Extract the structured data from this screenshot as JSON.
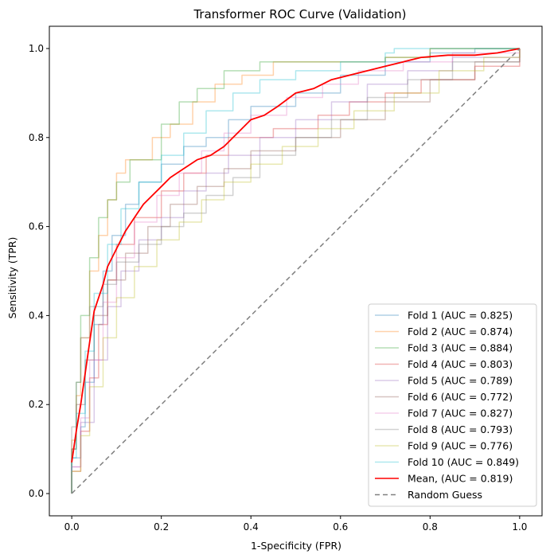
{
  "chart_data": {
    "type": "line",
    "title": "Transformer ROC Curve (Validation)",
    "xlabel": "1-Specificity (FPR)",
    "ylabel": "Sensitivity (TPR)",
    "xlim": [
      -0.05,
      1.05
    ],
    "ylim": [
      -0.05,
      1.05
    ],
    "xticks": [
      0.0,
      0.2,
      0.4,
      0.6,
      0.8,
      1.0
    ],
    "yticks": [
      0.0,
      0.2,
      0.4,
      0.6,
      0.8,
      1.0
    ],
    "xtick_labels": [
      "0.0",
      "0.2",
      "0.4",
      "0.6",
      "0.8",
      "1.0"
    ],
    "ytick_labels": [
      "0.0",
      "0.2",
      "0.4",
      "0.6",
      "0.8",
      "1.0"
    ],
    "grid": false,
    "legend_position": "bottom-right",
    "series": [
      {
        "name": "Fold 1 (AUC = 0.825)",
        "color": "#1f77b4",
        "opacity": 0.35,
        "points": [
          [
            0,
            0
          ],
          [
            0,
            0.08
          ],
          [
            0.02,
            0.15
          ],
          [
            0.03,
            0.25
          ],
          [
            0.05,
            0.38
          ],
          [
            0.07,
            0.5
          ],
          [
            0.09,
            0.58
          ],
          [
            0.12,
            0.65
          ],
          [
            0.15,
            0.7
          ],
          [
            0.2,
            0.74
          ],
          [
            0.25,
            0.78
          ],
          [
            0.3,
            0.8
          ],
          [
            0.35,
            0.84
          ],
          [
            0.4,
            0.87
          ],
          [
            0.5,
            0.9
          ],
          [
            0.6,
            0.94
          ],
          [
            0.7,
            0.97
          ],
          [
            0.8,
            0.99
          ],
          [
            0.9,
            1.0
          ],
          [
            1,
            1
          ]
        ]
      },
      {
        "name": "Fold 2 (AUC = 0.874)",
        "color": "#ff7f0e",
        "opacity": 0.35,
        "points": [
          [
            0,
            0
          ],
          [
            0,
            0.12
          ],
          [
            0.01,
            0.22
          ],
          [
            0.02,
            0.35
          ],
          [
            0.04,
            0.5
          ],
          [
            0.06,
            0.58
          ],
          [
            0.08,
            0.66
          ],
          [
            0.1,
            0.72
          ],
          [
            0.12,
            0.75
          ],
          [
            0.18,
            0.8
          ],
          [
            0.22,
            0.83
          ],
          [
            0.27,
            0.88
          ],
          [
            0.32,
            0.92
          ],
          [
            0.38,
            0.94
          ],
          [
            0.45,
            0.97
          ],
          [
            0.6,
            0.97
          ],
          [
            0.7,
            0.98
          ],
          [
            0.8,
            1.0
          ],
          [
            1,
            1
          ]
        ]
      },
      {
        "name": "Fold 3 (AUC = 0.884)",
        "color": "#2ca02c",
        "opacity": 0.35,
        "points": [
          [
            0,
            0
          ],
          [
            0,
            0.1
          ],
          [
            0.01,
            0.25
          ],
          [
            0.02,
            0.4
          ],
          [
            0.04,
            0.53
          ],
          [
            0.06,
            0.62
          ],
          [
            0.08,
            0.66
          ],
          [
            0.1,
            0.7
          ],
          [
            0.13,
            0.75
          ],
          [
            0.2,
            0.83
          ],
          [
            0.24,
            0.88
          ],
          [
            0.28,
            0.91
          ],
          [
            0.34,
            0.95
          ],
          [
            0.42,
            0.97
          ],
          [
            0.55,
            0.97
          ],
          [
            0.7,
            0.98
          ],
          [
            0.8,
            1.0
          ],
          [
            1,
            1
          ]
        ]
      },
      {
        "name": "Fold 4 (AUC = 0.803)",
        "color": "#d62728",
        "opacity": 0.35,
        "points": [
          [
            0,
            0
          ],
          [
            0,
            0.05
          ],
          [
            0.02,
            0.14
          ],
          [
            0.04,
            0.26
          ],
          [
            0.06,
            0.38
          ],
          [
            0.08,
            0.48
          ],
          [
            0.1,
            0.56
          ],
          [
            0.14,
            0.62
          ],
          [
            0.2,
            0.68
          ],
          [
            0.25,
            0.72
          ],
          [
            0.3,
            0.76
          ],
          [
            0.35,
            0.8
          ],
          [
            0.45,
            0.82
          ],
          [
            0.55,
            0.85
          ],
          [
            0.62,
            0.88
          ],
          [
            0.7,
            0.9
          ],
          [
            0.78,
            0.93
          ],
          [
            0.9,
            0.96
          ],
          [
            1,
            1
          ]
        ]
      },
      {
        "name": "Fold 5 (AUC = 0.789)",
        "color": "#9467bd",
        "opacity": 0.35,
        "points": [
          [
            0,
            0
          ],
          [
            0,
            0.06
          ],
          [
            0.02,
            0.16
          ],
          [
            0.05,
            0.3
          ],
          [
            0.08,
            0.42
          ],
          [
            0.11,
            0.5
          ],
          [
            0.15,
            0.57
          ],
          [
            0.2,
            0.62
          ],
          [
            0.25,
            0.68
          ],
          [
            0.3,
            0.72
          ],
          [
            0.35,
            0.76
          ],
          [
            0.42,
            0.8
          ],
          [
            0.5,
            0.84
          ],
          [
            0.58,
            0.88
          ],
          [
            0.66,
            0.92
          ],
          [
            0.75,
            0.95
          ],
          [
            0.85,
            0.98
          ],
          [
            1,
            1
          ]
        ]
      },
      {
        "name": "Fold 6 (AUC = 0.772)",
        "color": "#8c564b",
        "opacity": 0.35,
        "points": [
          [
            0,
            0
          ],
          [
            0,
            0.1
          ],
          [
            0.01,
            0.2
          ],
          [
            0.03,
            0.3
          ],
          [
            0.05,
            0.4
          ],
          [
            0.08,
            0.48
          ],
          [
            0.12,
            0.54
          ],
          [
            0.17,
            0.6
          ],
          [
            0.22,
            0.65
          ],
          [
            0.28,
            0.69
          ],
          [
            0.34,
            0.73
          ],
          [
            0.4,
            0.77
          ],
          [
            0.5,
            0.8
          ],
          [
            0.6,
            0.84
          ],
          [
            0.7,
            0.88
          ],
          [
            0.8,
            0.93
          ],
          [
            0.9,
            0.97
          ],
          [
            1,
            1
          ]
        ]
      },
      {
        "name": "Fold 7 (AUC = 0.827)",
        "color": "#e377c2",
        "opacity": 0.35,
        "points": [
          [
            0,
            0
          ],
          [
            0,
            0.06
          ],
          [
            0.02,
            0.17
          ],
          [
            0.04,
            0.3
          ],
          [
            0.07,
            0.43
          ],
          [
            0.1,
            0.53
          ],
          [
            0.14,
            0.61
          ],
          [
            0.19,
            0.67
          ],
          [
            0.24,
            0.72
          ],
          [
            0.29,
            0.77
          ],
          [
            0.34,
            0.81
          ],
          [
            0.4,
            0.85
          ],
          [
            0.48,
            0.89
          ],
          [
            0.56,
            0.92
          ],
          [
            0.64,
            0.95
          ],
          [
            0.74,
            0.97
          ],
          [
            0.85,
            0.99
          ],
          [
            1,
            1
          ]
        ]
      },
      {
        "name": "Fold 8 (AUC = 0.793)",
        "color": "#7f7f7f",
        "opacity": 0.35,
        "points": [
          [
            0,
            0
          ],
          [
            0,
            0.15
          ],
          [
            0.01,
            0.25
          ],
          [
            0.02,
            0.35
          ],
          [
            0.04,
            0.42
          ],
          [
            0.07,
            0.47
          ],
          [
            0.1,
            0.52
          ],
          [
            0.15,
            0.56
          ],
          [
            0.2,
            0.6
          ],
          [
            0.25,
            0.63
          ],
          [
            0.3,
            0.67
          ],
          [
            0.36,
            0.71
          ],
          [
            0.42,
            0.76
          ],
          [
            0.5,
            0.8
          ],
          [
            0.58,
            0.84
          ],
          [
            0.66,
            0.89
          ],
          [
            0.75,
            0.93
          ],
          [
            0.85,
            0.97
          ],
          [
            1,
            1
          ]
        ]
      },
      {
        "name": "Fold 9 (AUC = 0.776)",
        "color": "#bcbd22",
        "opacity": 0.35,
        "points": [
          [
            0,
            0
          ],
          [
            0,
            0.05
          ],
          [
            0.02,
            0.13
          ],
          [
            0.04,
            0.24
          ],
          [
            0.07,
            0.35
          ],
          [
            0.1,
            0.44
          ],
          [
            0.14,
            0.51
          ],
          [
            0.19,
            0.57
          ],
          [
            0.24,
            0.61
          ],
          [
            0.29,
            0.66
          ],
          [
            0.34,
            0.7
          ],
          [
            0.4,
            0.74
          ],
          [
            0.47,
            0.78
          ],
          [
            0.55,
            0.82
          ],
          [
            0.63,
            0.86
          ],
          [
            0.72,
            0.9
          ],
          [
            0.82,
            0.95
          ],
          [
            0.92,
            0.98
          ],
          [
            1,
            1
          ]
        ]
      },
      {
        "name": "Fold 10 (AUC = 0.849)",
        "color": "#17becf",
        "opacity": 0.35,
        "points": [
          [
            0,
            0
          ],
          [
            0,
            0.08
          ],
          [
            0.01,
            0.18
          ],
          [
            0.03,
            0.32
          ],
          [
            0.05,
            0.45
          ],
          [
            0.08,
            0.56
          ],
          [
            0.11,
            0.64
          ],
          [
            0.15,
            0.7
          ],
          [
            0.2,
            0.76
          ],
          [
            0.25,
            0.81
          ],
          [
            0.3,
            0.86
          ],
          [
            0.36,
            0.9
          ],
          [
            0.42,
            0.93
          ],
          [
            0.5,
            0.95
          ],
          [
            0.6,
            0.97
          ],
          [
            0.7,
            0.99
          ],
          [
            0.72,
            1.0
          ],
          [
            1,
            1
          ]
        ]
      },
      {
        "name": "Mean, (AUC = 0.819)",
        "color": "#ff0000",
        "opacity": 1.0,
        "width": 1.8,
        "points": [
          [
            0,
            0.07
          ],
          [
            0.01,
            0.14
          ],
          [
            0.02,
            0.2
          ],
          [
            0.03,
            0.27
          ],
          [
            0.04,
            0.34
          ],
          [
            0.05,
            0.41
          ],
          [
            0.06,
            0.44
          ],
          [
            0.07,
            0.47
          ],
          [
            0.08,
            0.51
          ],
          [
            0.1,
            0.55
          ],
          [
            0.12,
            0.59
          ],
          [
            0.14,
            0.62
          ],
          [
            0.16,
            0.65
          ],
          [
            0.18,
            0.67
          ],
          [
            0.2,
            0.69
          ],
          [
            0.22,
            0.71
          ],
          [
            0.25,
            0.73
          ],
          [
            0.28,
            0.75
          ],
          [
            0.31,
            0.76
          ],
          [
            0.34,
            0.78
          ],
          [
            0.37,
            0.81
          ],
          [
            0.4,
            0.84
          ],
          [
            0.43,
            0.85
          ],
          [
            0.46,
            0.87
          ],
          [
            0.5,
            0.9
          ],
          [
            0.54,
            0.91
          ],
          [
            0.58,
            0.93
          ],
          [
            0.62,
            0.94
          ],
          [
            0.66,
            0.95
          ],
          [
            0.7,
            0.96
          ],
          [
            0.74,
            0.97
          ],
          [
            0.78,
            0.98
          ],
          [
            0.84,
            0.985
          ],
          [
            0.9,
            0.985
          ],
          [
            0.95,
            0.99
          ],
          [
            1,
            1
          ]
        ]
      }
    ],
    "reference_line": {
      "name": "Random Guess",
      "color": "#808080",
      "dash": "6,4",
      "points": [
        [
          0,
          0
        ],
        [
          1,
          1
        ]
      ]
    }
  }
}
